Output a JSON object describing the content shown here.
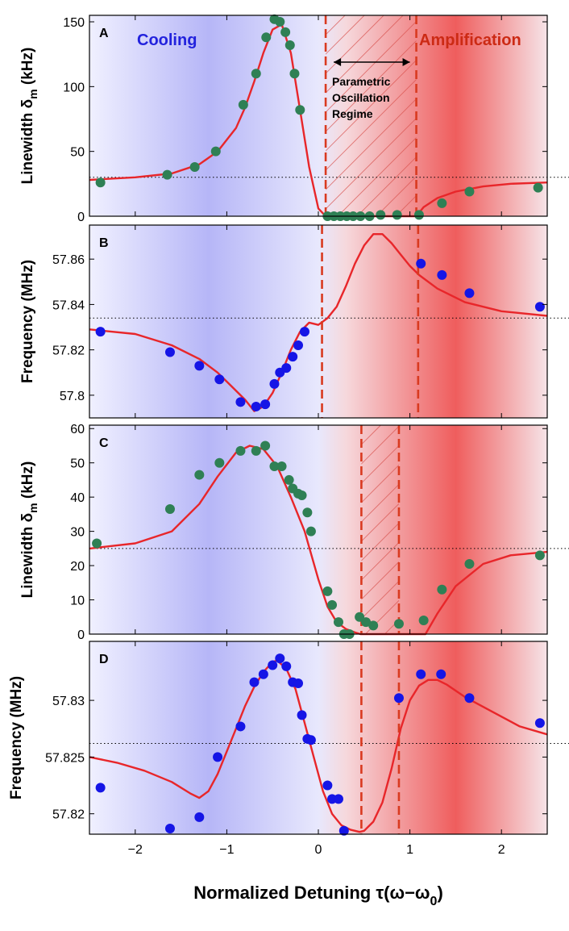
{
  "chart_data": [
    {
      "type": "scatter",
      "panel_label": "A",
      "ylabel_main": "Linewidth δ",
      "ylabel_sub": "m",
      "ylabel_unit": "(kHz)",
      "ylim": [
        0,
        155
      ],
      "yticks": [
        0,
        50,
        100,
        150
      ],
      "ytick_labels": [
        "0",
        "50",
        "100",
        "150"
      ],
      "reference_line": 30,
      "region_labels": {
        "cooling": "Cooling",
        "amplification": "Amplification"
      },
      "annotation": [
        "Parametric",
        "Oscillation",
        "Regime"
      ],
      "hatched_region": [
        0.08,
        1.07
      ],
      "dashed_lines": [
        0.08,
        1.07
      ],
      "points": {
        "x": [
          -2.38,
          -1.65,
          -1.35,
          -1.12,
          -0.82,
          -0.68,
          -0.57,
          -0.48,
          -0.42,
          -0.36,
          -0.31,
          -0.26,
          -0.2,
          0.1,
          0.17,
          0.24,
          0.31,
          0.38,
          0.46,
          0.56,
          0.68,
          0.86,
          1.1,
          1.35,
          1.65,
          2.4
        ],
        "y": [
          26,
          32,
          38,
          50,
          86,
          110,
          138,
          152,
          150,
          142,
          132,
          110,
          82,
          0,
          0,
          0,
          0,
          0,
          0,
          0,
          1,
          1,
          1,
          10,
          19,
          22
        ]
      },
      "fit": {
        "x": [
          -2.5,
          -2.0,
          -1.6,
          -1.3,
          -1.1,
          -0.9,
          -0.8,
          -0.7,
          -0.6,
          -0.5,
          -0.4,
          -0.3,
          -0.2,
          -0.1,
          0.0,
          0.08,
          1.07,
          1.15,
          1.3,
          1.5,
          1.8,
          2.1,
          2.5
        ],
        "y": [
          28,
          30,
          33,
          40,
          50,
          68,
          84,
          104,
          126,
          144,
          148,
          126,
          82,
          38,
          6,
          0,
          0,
          7,
          14,
          19,
          23,
          25,
          26
        ]
      }
    },
    {
      "type": "scatter",
      "panel_label": "B",
      "ylabel": "Frequency (MHz)",
      "ylim": [
        57.79,
        57.875
      ],
      "yticks": [
        57.8,
        57.82,
        57.84,
        57.86
      ],
      "ytick_labels": [
        "57.8",
        "57.82",
        "57.84",
        "57.86"
      ],
      "reference_line": 57.834,
      "dashed_lines": [
        0.04,
        1.09
      ],
      "points": {
        "x": [
          -2.38,
          -1.62,
          -1.3,
          -1.08,
          -0.85,
          -0.68,
          -0.58,
          -0.48,
          -0.42,
          -0.35,
          -0.28,
          -0.22,
          -0.15
        ],
        "y": [
          57.828,
          57.819,
          57.813,
          57.807,
          57.797,
          57.795,
          57.796,
          57.805,
          57.81,
          57.812,
          57.817,
          57.822,
          57.828
        ]
      },
      "points_right": {
        "x": [
          1.12,
          1.35,
          1.65,
          2.42
        ],
        "y": [
          57.858,
          57.853,
          57.845,
          57.839
        ]
      },
      "fit": {
        "x": [
          -2.5,
          -2.0,
          -1.6,
          -1.3,
          -1.1,
          -0.95,
          -0.8,
          -0.7,
          -0.6,
          -0.5,
          -0.4,
          -0.3,
          -0.2,
          -0.1,
          0.0,
          0.1,
          0.2,
          0.3,
          0.4,
          0.5,
          0.6,
          0.7,
          0.8,
          0.9,
          1.0,
          1.1,
          1.3,
          1.6,
          2.0,
          2.5
        ],
        "y": [
          57.829,
          57.827,
          57.822,
          57.816,
          57.81,
          57.804,
          57.798,
          57.793,
          57.795,
          57.801,
          57.81,
          57.82,
          57.828,
          57.832,
          57.831,
          57.834,
          57.839,
          57.848,
          57.858,
          57.866,
          57.871,
          57.871,
          57.867,
          57.862,
          57.857,
          57.853,
          57.847,
          57.841,
          57.837,
          57.835
        ]
      }
    },
    {
      "type": "scatter",
      "panel_label": "C",
      "ylabel_main": "Linewidth δ",
      "ylabel_sub": "m",
      "ylabel_unit": "(kHz)",
      "ylim": [
        0,
        61
      ],
      "yticks": [
        0,
        10,
        20,
        30,
        40,
        50,
        60
      ],
      "ytick_labels": [
        "0",
        "10",
        "20",
        "30",
        "40",
        "50",
        "60"
      ],
      "reference_line": 25,
      "hatched_region": [
        0.47,
        0.88
      ],
      "dashed_lines": [
        0.47,
        0.88
      ],
      "points": {
        "x": [
          -2.42,
          -1.62,
          -1.3,
          -1.08,
          -0.85,
          -0.68,
          -0.58,
          -0.48,
          -0.4,
          -0.32,
          -0.28,
          -0.22,
          -0.18,
          -0.12,
          -0.08,
          0.1,
          0.15,
          0.22,
          0.28,
          0.34,
          0.45,
          0.52,
          0.6,
          0.88,
          1.15,
          1.35,
          1.65,
          2.42
        ],
        "y": [
          26.5,
          36.5,
          46.5,
          50,
          53.5,
          53.5,
          55,
          49,
          49,
          45,
          42.5,
          41,
          40.5,
          35.5,
          30,
          12.5,
          8.5,
          3.5,
          0,
          0,
          5,
          3.5,
          2.5,
          3,
          4,
          13,
          20.5,
          23
        ]
      },
      "fit": {
        "x": [
          -2.5,
          -2.0,
          -1.6,
          -1.3,
          -1.1,
          -0.9,
          -0.75,
          -0.6,
          -0.45,
          -0.3,
          -0.15,
          0.0,
          0.1,
          0.2,
          0.3,
          0.4,
          0.46,
          1.17,
          1.3,
          1.5,
          1.8,
          2.1,
          2.5
        ],
        "y": [
          25,
          26.5,
          30,
          38,
          46,
          53,
          55,
          54,
          49,
          40,
          30,
          16,
          8,
          3.5,
          1.5,
          0.5,
          0,
          0,
          6,
          14,
          20.5,
          23,
          24
        ]
      }
    },
    {
      "type": "scatter",
      "panel_label": "D",
      "ylabel": "Frequency (MHz)",
      "xlabel": "Normalized Detuning τ(ω−ω",
      "xlabel_sub": "0",
      "xlabel_close": ")",
      "xlim": [
        -2.5,
        2.5
      ],
      "xticks": [
        -2,
        -1,
        0,
        1,
        2
      ],
      "xtick_labels": [
        "−2",
        "−1",
        "0",
        "1",
        "2"
      ],
      "ylim": [
        57.8182,
        57.8352
      ],
      "yticks": [
        57.82,
        57.825,
        57.83
      ],
      "ytick_labels": [
        "57.82",
        "57.825",
        "57.83"
      ],
      "reference_line": 57.8262,
      "dashed_lines": [
        0.47,
        0.88
      ],
      "points": {
        "x": [
          -2.38,
          -1.62,
          -1.3,
          -1.1,
          -0.85,
          -0.7,
          -0.6,
          -0.5,
          -0.42,
          -0.35,
          -0.28,
          -0.22,
          -0.18,
          -0.12,
          -0.08,
          0.1,
          0.15,
          0.22,
          0.28,
          0.88,
          1.12,
          1.34,
          1.65,
          2.42
        ],
        "y": [
          57.8223,
          57.8187,
          57.8197,
          57.825,
          57.8277,
          57.8316,
          57.8323,
          57.8331,
          57.8337,
          57.833,
          57.8316,
          57.8315,
          57.8287,
          57.8266,
          57.8265,
          57.8225,
          57.8213,
          57.8213,
          57.8185,
          57.8302,
          57.8323,
          57.8323,
          57.8302,
          57.828
        ]
      },
      "fit": {
        "x": [
          -2.5,
          -2.2,
          -1.9,
          -1.6,
          -1.4,
          -1.3,
          -1.2,
          -1.1,
          -1.0,
          -0.9,
          -0.8,
          -0.7,
          -0.6,
          -0.5,
          -0.45,
          -0.35,
          -0.25,
          -0.15,
          -0.05,
          0.05,
          0.15,
          0.25,
          0.35,
          0.45,
          0.5,
          0.6,
          0.7,
          0.8,
          0.9,
          1.0,
          1.1,
          1.2,
          1.3,
          1.4,
          1.6,
          1.9,
          2.2,
          2.5
        ],
        "y": [
          57.825,
          57.8245,
          57.8238,
          57.8228,
          57.8218,
          57.8214,
          57.822,
          57.8235,
          57.8255,
          57.8275,
          57.8295,
          57.8312,
          57.8325,
          57.8334,
          57.8335,
          57.8328,
          57.831,
          57.828,
          57.825,
          57.822,
          57.82,
          57.819,
          57.8186,
          57.8184,
          57.8185,
          57.8193,
          57.821,
          57.824,
          57.8275,
          57.83,
          57.8313,
          57.8318,
          57.8318,
          57.8314,
          57.8303,
          57.829,
          57.8277,
          57.827
        ]
      }
    }
  ]
}
